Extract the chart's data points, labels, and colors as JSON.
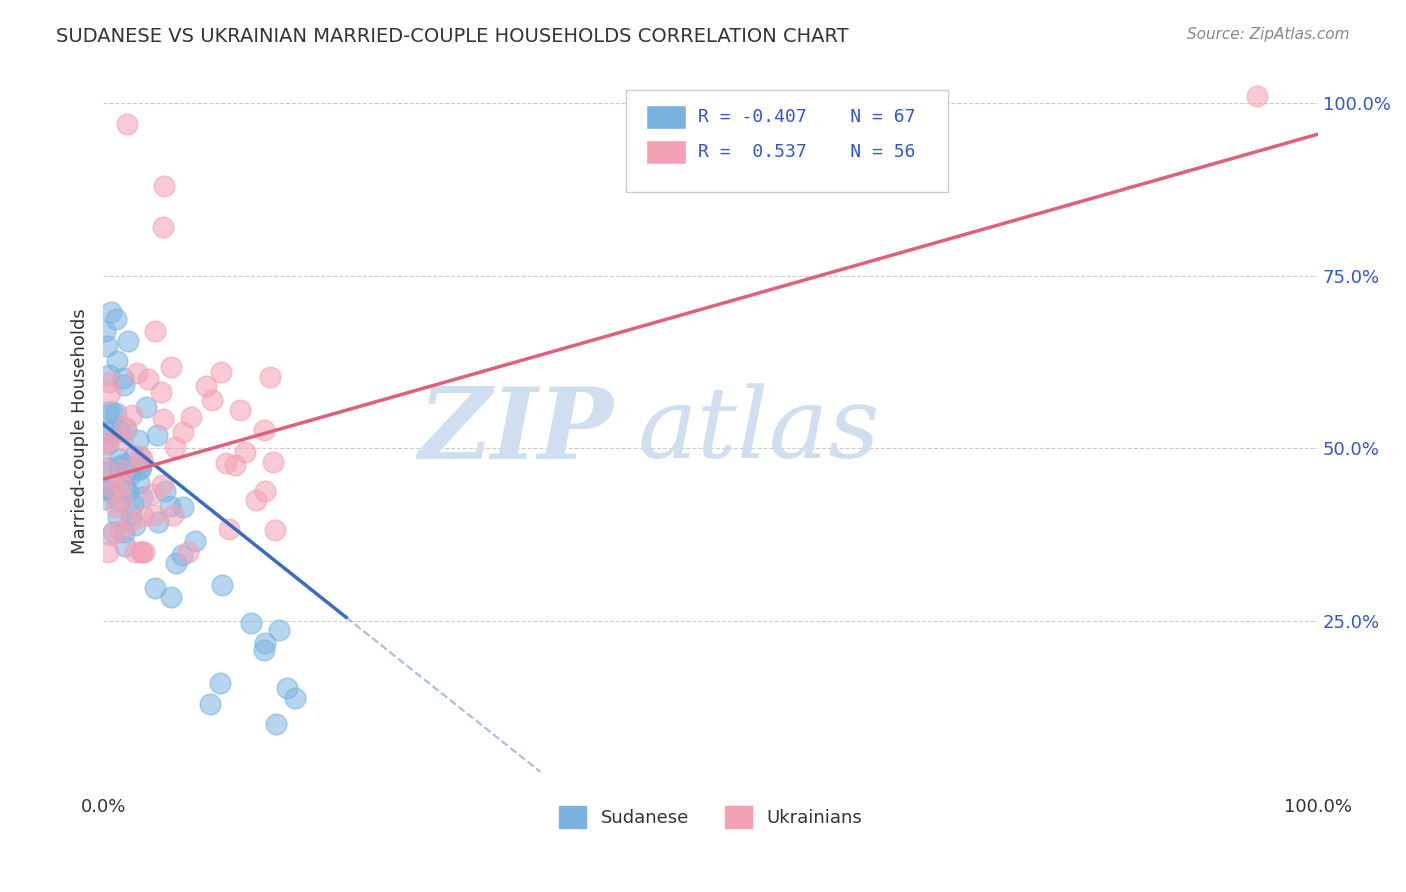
{
  "title": "SUDANESE VS UKRAINIAN MARRIED-COUPLE HOUSEHOLDS CORRELATION CHART",
  "source": "Source: ZipAtlas.com",
  "ylabel": "Married-couple Households",
  "xlabel": "",
  "xlim": [
    0,
    1
  ],
  "ylim": [
    0,
    1.05
  ],
  "xticklabels": [
    "0.0%",
    "100.0%"
  ],
  "yticks": [
    0.25,
    0.5,
    0.75,
    1.0
  ],
  "yticklabels": [
    "25.0%",
    "50.0%",
    "75.0%",
    "100.0%"
  ],
  "background_color": "#ffffff",
  "grid_color": "#cccccc",
  "sudanese_color": "#7ab3e0",
  "ukrainian_color": "#f4a0b5",
  "sudanese_line_color": "#3a6bbf",
  "ukrainian_line_color": "#e0607a",
  "legend_text_color": "#3355cc",
  "R_sudanese": -0.407,
  "N_sudanese": 67,
  "R_ukrainian": 0.537,
  "N_ukrainian": 56,
  "watermark_zip": "ZIP",
  "watermark_atlas": "atlas",
  "watermark_color": "#d0dff0"
}
